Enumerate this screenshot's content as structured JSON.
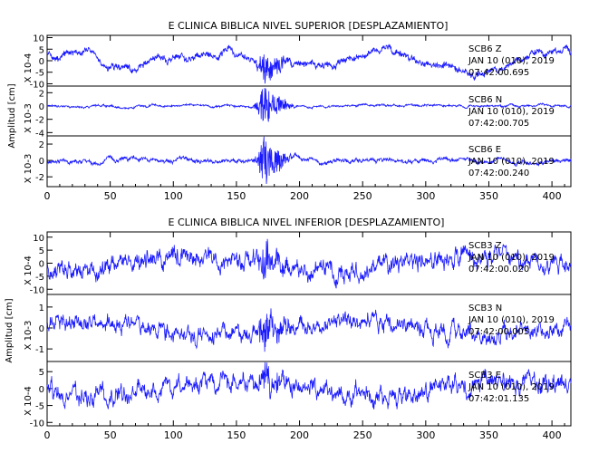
{
  "chart_data": [
    {
      "type": "line",
      "title": "E CLINICA BIBLICA NIVEL SUPERIOR [DESPLAZAMIENTO]",
      "ylabel": "Amplitud [cm]",
      "xlim": [
        0,
        415
      ],
      "xticks": [
        0,
        50,
        100,
        150,
        200,
        250,
        300,
        350,
        400
      ],
      "event_time": 172,
      "panels": [
        {
          "station": "SCB6",
          "component": "Z",
          "date": "JAN 10 (010), 2019",
          "time": "07:42:00.695",
          "scale": "X 10-4",
          "yticks": [
            10,
            5,
            0,
            -5,
            -10
          ],
          "ylim": [
            -11,
            11
          ],
          "amp": 5.5,
          "event_amp": 6,
          "character": "low"
        },
        {
          "station": "SCB6",
          "component": "N",
          "date": "JAN 10 (010), 2019",
          "time": "07:42:00.705",
          "scale": "X 10-3",
          "yticks": [
            2,
            0,
            -2,
            -4
          ],
          "ylim": [
            -4.5,
            3
          ],
          "amp": 0.3,
          "event_amp": 2.6,
          "character": "burst"
        },
        {
          "station": "SCB6",
          "component": "E",
          "date": "JAN 10 (010), 2019",
          "time": "07:42:00.240",
          "scale": "X 10-3",
          "yticks": [
            2,
            0,
            -2
          ],
          "ylim": [
            -3.2,
            3
          ],
          "amp": 0.45,
          "event_amp": 2.6,
          "character": "burst"
        }
      ]
    },
    {
      "type": "line",
      "title": "E CLINICA BIBLICA NIVEL INFERIOR [DESPLAZAMIENTO]",
      "ylabel": "Amplitud [cm]",
      "xlim": [
        0,
        415
      ],
      "xticks": [
        0,
        50,
        100,
        150,
        200,
        250,
        300,
        350,
        400
      ],
      "event_time": 172,
      "panels": [
        {
          "station": "SCB3",
          "component": "Z",
          "date": "JAN 10 (010), 2019",
          "time": "07:42:00.020",
          "scale": "X 10-4",
          "yticks": [
            10,
            5,
            0,
            -5,
            -10
          ],
          "ylim": [
            -12,
            12
          ],
          "amp": 4.5,
          "event_amp": 5,
          "character": "noisy"
        },
        {
          "station": "SCB3",
          "component": "N",
          "date": "JAN 10 (010), 2019",
          "time": "07:42:00.005",
          "scale": "X 10-3",
          "yticks": [
            1,
            0,
            -1
          ],
          "ylim": [
            -1.6,
            1.6
          ],
          "amp": 0.5,
          "event_amp": 0.8,
          "character": "noisy"
        },
        {
          "station": "SCB3",
          "component": "E",
          "date": "JAN 10 (010), 2019",
          "time": "07:42:01.135",
          "scale": "X 10-4",
          "yticks": [
            5,
            0,
            -5,
            -10
          ],
          "ylim": [
            -11,
            8
          ],
          "amp": 3.5,
          "event_amp": 4,
          "character": "noisy"
        }
      ]
    }
  ]
}
